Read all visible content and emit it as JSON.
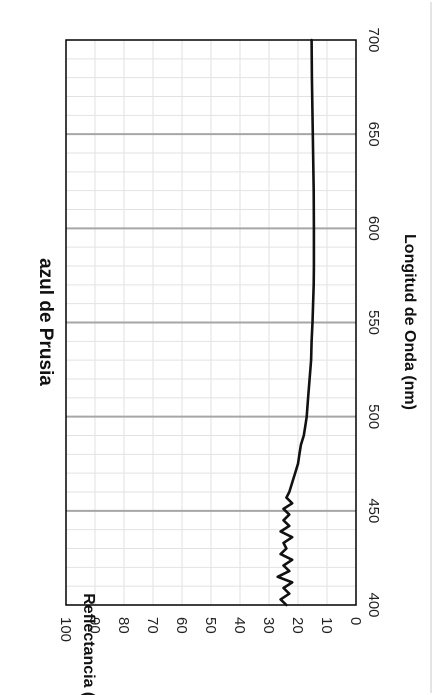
{
  "chart_data": {
    "type": "line",
    "orientation": "rotated-90-clockwise",
    "title": "azul de Prusia",
    "xlabel": "Longitud de Onda (nm)",
    "ylabel": "Reflectancia (%)",
    "xlim": [
      400,
      700
    ],
    "ylim": [
      0,
      100
    ],
    "x_ticks": [
      "400",
      "450",
      "500",
      "550",
      "600",
      "650",
      "700"
    ],
    "y_ticks": [
      "0",
      "10",
      "20",
      "30",
      "40",
      "50",
      "60",
      "70",
      "80",
      "90",
      "100"
    ],
    "grid": true,
    "legend": "none",
    "colors": {
      "line": "#111111",
      "major_grid": "#a6a6a6",
      "minor_grid": "#e2e2e2",
      "frame": "#000000"
    },
    "series": [
      {
        "x": [
          400,
          403,
          406,
          409,
          412,
          415,
          418,
          421,
          424,
          427,
          430,
          433,
          436,
          439,
          442,
          445,
          448,
          451,
          454,
          457,
          460,
          465,
          470,
          475,
          480,
          485,
          490,
          495,
          500,
          510,
          520,
          530,
          540,
          550,
          560,
          570,
          580,
          590,
          600,
          620,
          640,
          660,
          680,
          700
        ],
        "y": [
          24,
          26,
          23,
          25,
          22,
          27,
          23,
          25,
          22,
          26,
          24,
          25,
          22,
          26,
          23,
          25,
          23,
          25,
          22,
          24,
          23,
          22,
          21,
          20,
          19.5,
          19,
          18,
          17.5,
          17,
          16.5,
          16,
          15.5,
          15.3,
          15,
          14.8,
          14.6,
          14.5,
          14.5,
          14.5,
          14.6,
          14.8,
          15,
          15.2,
          15.3
        ]
      }
    ]
  }
}
